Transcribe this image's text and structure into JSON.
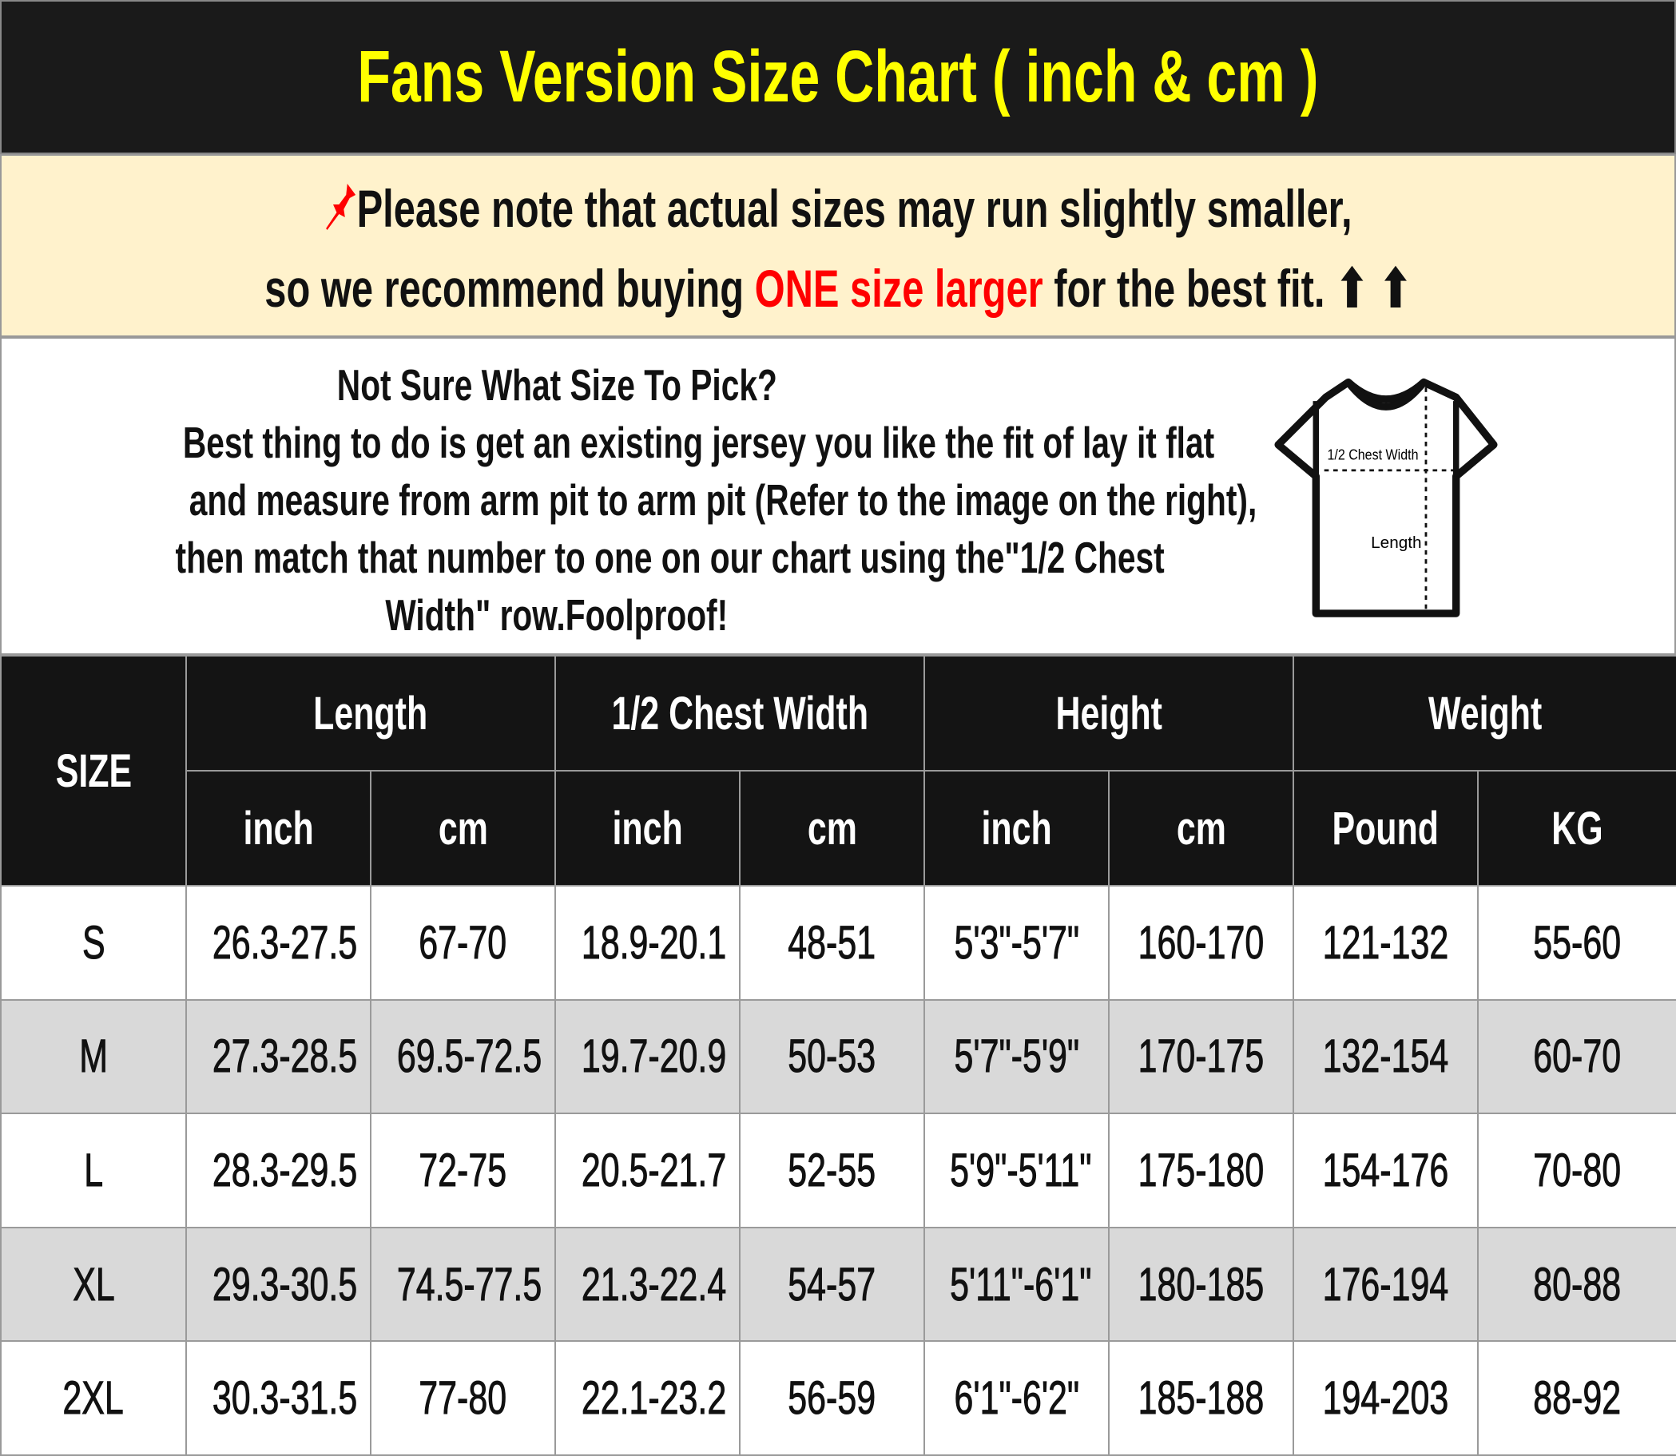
{
  "title": "Fans Version Size Chart ( inch & cm )",
  "note": {
    "icon": "pushpin-icon",
    "line1": "Please note that actual sizes may run slightly smaller,",
    "line2_a": "so we recommend buying ",
    "line2_red": "ONE size larger",
    "line2_b": " for the best fit.",
    "arrows": "⬆ ⬆",
    "accent": "#ff0000"
  },
  "info": {
    "lines": [
      "Not Sure What Size To Pick?",
      "Best thing to do is get an existing jersey you like the fit of lay it flat",
      "and measure from arm pit to arm pit (Refer to the image on the right),",
      "then match that number to one on our chart using the\"1/2 Chest",
      "Width\" row.Foolproof!"
    ],
    "diagram": {
      "chest_label": "1/2 Chest Width",
      "length_label": "Length"
    }
  },
  "table": {
    "size_header": "SIZE",
    "groups": [
      "Length",
      "1/2 Chest Width",
      "Height",
      "Weight"
    ],
    "units": [
      "inch",
      "cm",
      "inch",
      "cm",
      "inch",
      "cm",
      "Pound",
      "KG"
    ],
    "rows": [
      [
        "S",
        "26.3-27.5",
        "67-70",
        "18.9-20.1",
        "48-51",
        "5'3\"-5'7\"",
        "160-170",
        "121-132",
        "55-60"
      ],
      [
        "M",
        "27.3-28.5",
        "69.5-72.5",
        "19.7-20.9",
        "50-53",
        "5'7\"-5'9\"",
        "170-175",
        "132-154",
        "60-70"
      ],
      [
        "L",
        "28.3-29.5",
        "72-75",
        "20.5-21.7",
        "52-55",
        "5'9\"-5'11\"",
        "175-180",
        "154-176",
        "70-80"
      ],
      [
        "XL",
        "29.3-30.5",
        "74.5-77.5",
        "21.3-22.4",
        "54-57",
        "5'11\"-6'1\"",
        "180-185",
        "176-194",
        "80-88"
      ],
      [
        "2XL",
        "30.3-31.5",
        "77-80",
        "22.1-23.2",
        "56-59",
        "6'1\"-6'2\"",
        "185-188",
        "194-203",
        "88-92"
      ]
    ]
  }
}
